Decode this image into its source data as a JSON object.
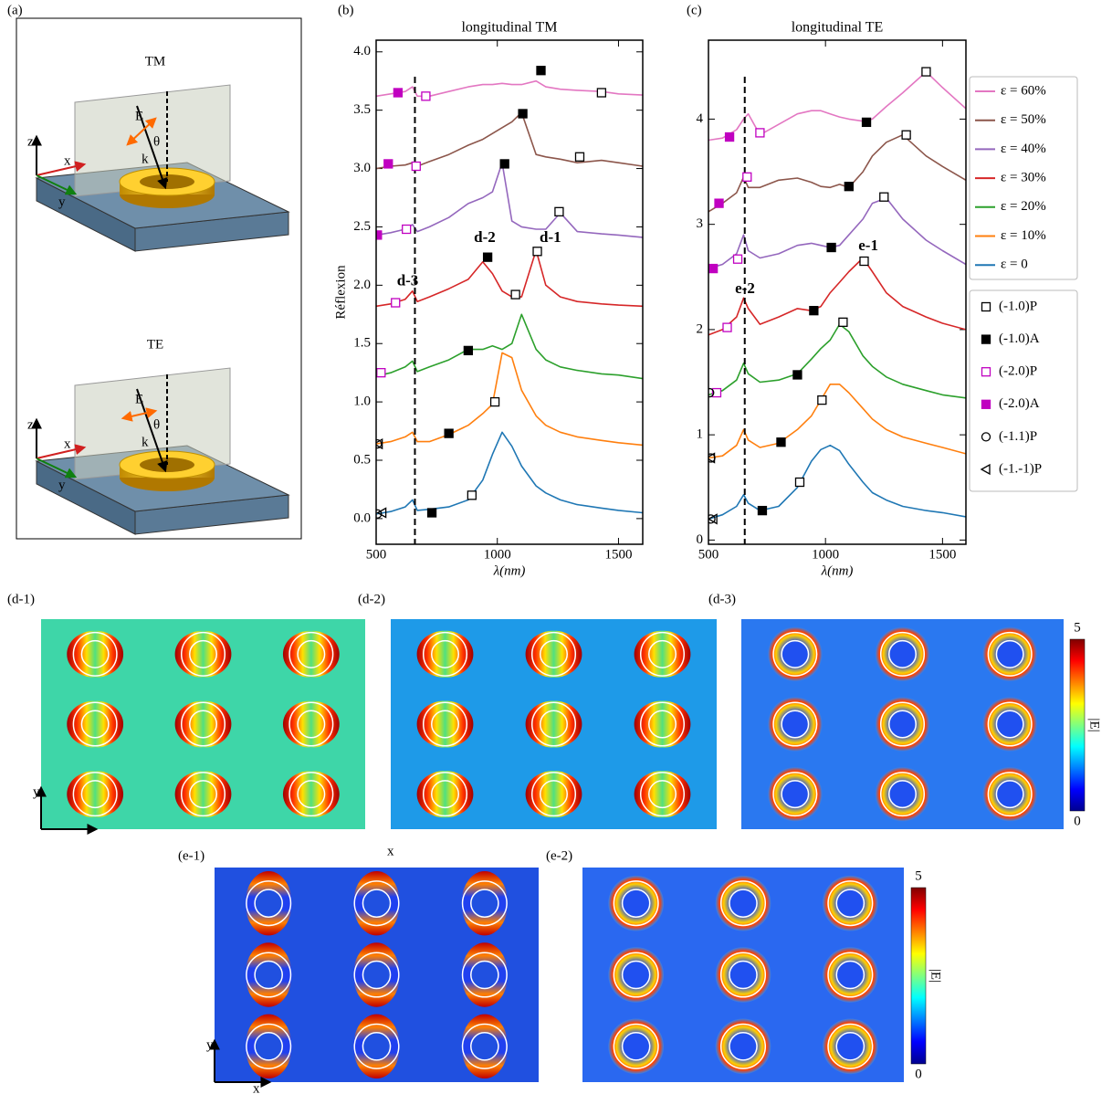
{
  "schematic": {
    "panel_label": "(a)",
    "panels": [
      {
        "title": "TM",
        "z": "z",
        "x": "x",
        "y": "y",
        "E": "E",
        "theta": "θ",
        "k": "k"
      },
      {
        "title": "TE",
        "z": "z",
        "x": "x",
        "y": "y",
        "E": "E",
        "theta": "θ",
        "k": "k"
      }
    ]
  },
  "chart_data": [
    {
      "type": "line",
      "panel_label": "(b)",
      "title": "longitudinal TM",
      "x_label": "λ(nm)",
      "y_label": "Réflexion",
      "xlim": [
        500,
        1600
      ],
      "xticks": [
        500,
        1000,
        1500
      ],
      "ylim": [
        -0.22,
        4.1
      ],
      "yticks": [
        {
          "value": 0,
          "label": "0.0"
        },
        0.5,
        {
          "value": 1,
          "label": "1.0"
        },
        1.5,
        {
          "value": 2,
          "label": "2.0"
        },
        2.5,
        {
          "value": 3,
          "label": "3.0"
        },
        3.5,
        {
          "value": 4,
          "label": "4.0"
        }
      ],
      "vline": {
        "x": 660
      },
      "x": [
        500,
        560,
        620,
        650,
        670,
        720,
        800,
        880,
        940,
        980,
        1020,
        1060,
        1100,
        1160,
        1200,
        1260,
        1330,
        1430,
        1500,
        1600
      ],
      "series": [
        {
          "color": "#1f77b4",
          "values": [
            0.04,
            0.06,
            0.1,
            0.16,
            0.07,
            0.08,
            0.1,
            0.16,
            0.33,
            0.55,
            0.74,
            0.62,
            0.45,
            0.28,
            0.22,
            0.16,
            0.12,
            0.09,
            0.07,
            0.05
          ]
        },
        {
          "color": "#ff7f0e",
          "values": [
            0.64,
            0.66,
            0.7,
            0.74,
            0.66,
            0.66,
            0.72,
            0.8,
            0.9,
            0.98,
            1.42,
            1.38,
            1.1,
            0.88,
            0.8,
            0.74,
            0.7,
            0.67,
            0.65,
            0.63
          ]
        },
        {
          "color": "#2ca02c",
          "values": [
            1.22,
            1.25,
            1.3,
            1.35,
            1.26,
            1.3,
            1.36,
            1.45,
            1.45,
            1.48,
            1.45,
            1.5,
            1.75,
            1.45,
            1.36,
            1.3,
            1.27,
            1.24,
            1.23,
            1.2
          ]
        },
        {
          "color": "#d62728",
          "values": [
            1.82,
            1.84,
            1.88,
            1.95,
            1.86,
            1.9,
            1.97,
            2.05,
            2.2,
            2.1,
            1.95,
            1.9,
            1.9,
            2.3,
            2.0,
            1.9,
            1.86,
            1.84,
            1.83,
            1.82
          ]
        },
        {
          "color": "#9467bd",
          "values": [
            2.43,
            2.45,
            2.48,
            2.52,
            2.46,
            2.5,
            2.58,
            2.7,
            2.75,
            2.8,
            3.05,
            2.55,
            2.5,
            2.48,
            2.48,
            2.62,
            2.46,
            2.44,
            2.43,
            2.41
          ]
        },
        {
          "color": "#8c564b",
          "values": [
            3.0,
            3.02,
            3.03,
            3.05,
            3.02,
            3.06,
            3.12,
            3.2,
            3.25,
            3.3,
            3.35,
            3.4,
            3.48,
            3.12,
            3.1,
            3.08,
            3.05,
            3.07,
            3.05,
            3.02
          ]
        },
        {
          "color": "#e377c2",
          "values": [
            3.62,
            3.64,
            3.66,
            3.7,
            3.62,
            3.62,
            3.66,
            3.7,
            3.72,
            3.72,
            3.73,
            3.72,
            3.72,
            3.75,
            3.7,
            3.68,
            3.67,
            3.66,
            3.64,
            3.63
          ]
        }
      ],
      "markers": [
        {
          "symbol": "square-open",
          "color": "#000000",
          "x": [
            895,
            990,
            1075,
            1165,
            1255,
            1340,
            1430
          ],
          "values": [
            0.2,
            1.0,
            1.92,
            2.29,
            2.63,
            3.1,
            3.65
          ]
        },
        {
          "symbol": "square-filled",
          "color": "#000000",
          "x": [
            730,
            800,
            880,
            960,
            1030,
            1105,
            1180
          ],
          "values": [
            0.05,
            0.73,
            1.44,
            2.24,
            3.04,
            3.47,
            3.84
          ]
        },
        {
          "symbol": "square-open",
          "color": "#c000c0",
          "x": [
            520,
            580,
            625,
            665,
            705
          ],
          "values": [
            1.25,
            1.85,
            2.48,
            3.02,
            3.62
          ]
        },
        {
          "symbol": "square-filled",
          "color": "#c000c0",
          "x": [
            505,
            550,
            590
          ],
          "values": [
            2.43,
            3.04,
            3.65
          ]
        },
        {
          "symbol": "circle-open",
          "color": "#000000",
          "x": [
            505,
            505
          ],
          "values": [
            0.04,
            0.64
          ]
        },
        {
          "symbol": "triangle-open",
          "color": "#000000",
          "x": [
            525,
            510
          ],
          "values": [
            0.05,
            0.64
          ]
        }
      ],
      "annotations": [
        {
          "text": "d-3",
          "x": 630,
          "y": 2.03
        },
        {
          "text": "d-2",
          "x": 948,
          "y": 2.4
        },
        {
          "text": "d-1",
          "x": 1219,
          "y": 2.4
        }
      ]
    },
    {
      "type": "line",
      "panel_label": "(c)",
      "title": "longitudinal TE",
      "x_label": "λ(nm)",
      "xlim": [
        500,
        1600
      ],
      "xticks": [
        500,
        1000,
        1500
      ],
      "ylim": [
        -0.04,
        4.75
      ],
      "yticks": [
        0,
        1,
        2,
        3,
        4
      ],
      "vline": {
        "x": 655
      },
      "legend": "right",
      "x": [
        500,
        560,
        620,
        650,
        670,
        720,
        800,
        880,
        940,
        980,
        1020,
        1060,
        1100,
        1160,
        1200,
        1260,
        1330,
        1430,
        1500,
        1600
      ],
      "series": [
        {
          "name": "ε = 0",
          "color": "#1f77b4",
          "values": [
            0.2,
            0.24,
            0.32,
            0.43,
            0.35,
            0.28,
            0.32,
            0.5,
            0.75,
            0.86,
            0.9,
            0.85,
            0.72,
            0.55,
            0.45,
            0.38,
            0.32,
            0.28,
            0.26,
            0.22
          ]
        },
        {
          "name": "ε = 10%",
          "color": "#ff7f0e",
          "values": [
            0.78,
            0.8,
            0.9,
            1.05,
            0.95,
            0.88,
            0.92,
            1.05,
            1.18,
            1.33,
            1.48,
            1.48,
            1.4,
            1.25,
            1.15,
            1.05,
            0.98,
            0.92,
            0.88,
            0.82
          ]
        },
        {
          "name": "ε = 20%",
          "color": "#2ca02c",
          "values": [
            1.38,
            1.42,
            1.52,
            1.68,
            1.58,
            1.5,
            1.52,
            1.58,
            1.72,
            1.82,
            1.9,
            2.05,
            1.98,
            1.75,
            1.65,
            1.55,
            1.48,
            1.42,
            1.38,
            1.35
          ]
        },
        {
          "name": "ε = 30%",
          "color": "#d62728",
          "values": [
            1.95,
            2.0,
            2.12,
            2.3,
            2.2,
            2.05,
            2.12,
            2.2,
            2.18,
            2.22,
            2.35,
            2.45,
            2.55,
            2.68,
            2.55,
            2.35,
            2.22,
            2.12,
            2.06,
            2.0
          ]
        },
        {
          "name": "ε = 40%",
          "color": "#9467bd",
          "values": [
            2.58,
            2.62,
            2.72,
            2.9,
            2.75,
            2.68,
            2.72,
            2.8,
            2.82,
            2.8,
            2.78,
            2.8,
            2.9,
            3.05,
            3.2,
            3.25,
            3.05,
            2.85,
            2.75,
            2.62
          ]
        },
        {
          "name": "ε = 50%",
          "color": "#8c564b",
          "values": [
            3.12,
            3.2,
            3.3,
            3.45,
            3.35,
            3.35,
            3.42,
            3.44,
            3.4,
            3.36,
            3.35,
            3.38,
            3.35,
            3.5,
            3.65,
            3.78,
            3.85,
            3.65,
            3.55,
            3.42
          ]
        },
        {
          "name": "ε = 60%",
          "color": "#e377c2",
          "values": [
            3.8,
            3.82,
            3.9,
            4.0,
            4.05,
            3.85,
            3.95,
            4.05,
            4.08,
            4.08,
            4.05,
            4.02,
            4.0,
            3.98,
            4.0,
            4.12,
            4.25,
            4.45,
            4.3,
            4.1
          ]
        }
      ],
      "markers": [
        {
          "name": "(-1.0)P",
          "symbol": "square-open",
          "color": "#000000",
          "x": [
            890,
            985,
            1075,
            1165,
            1250,
            1345,
            1430
          ],
          "values": [
            0.55,
            1.33,
            2.07,
            2.65,
            3.26,
            3.85,
            4.45
          ]
        },
        {
          "name": "(-1.0)A",
          "symbol": "square-filled",
          "color": "#000000",
          "x": [
            730,
            810,
            880,
            950,
            1025,
            1100,
            1175
          ],
          "values": [
            0.28,
            0.93,
            1.57,
            2.18,
            2.78,
            3.36,
            3.97
          ]
        },
        {
          "name": "(-2.0)P",
          "symbol": "square-open",
          "color": "#c000c0",
          "x": [
            535,
            580,
            625,
            665,
            720
          ],
          "values": [
            1.4,
            2.02,
            2.67,
            3.45,
            3.87
          ]
        },
        {
          "name": "(-2.0)A",
          "symbol": "square-filled",
          "color": "#c000c0",
          "x": [
            520,
            545,
            590
          ],
          "values": [
            2.58,
            3.2,
            3.83
          ]
        },
        {
          "name": "(-1.1)P",
          "symbol": "circle-open",
          "color": "#000000",
          "x": [
            510,
            510,
            505
          ],
          "values": [
            0.2,
            0.78,
            1.4
          ]
        },
        {
          "name": "(-1.-1)P",
          "symbol": "triangle-open",
          "color": "#000000",
          "x": [
            520,
            510
          ],
          "values": [
            0.2,
            0.78
          ]
        }
      ],
      "annotations": [
        {
          "text": "e-2",
          "x": 656,
          "y": 2.38
        },
        {
          "text": "e-1",
          "x": 1183,
          "y": 2.79
        }
      ]
    }
  ],
  "field_maps": {
    "maps": [
      {
        "label": "(d-1)",
        "axis_labels": {
          "x": "x",
          "y": "y"
        }
      },
      {
        "label": "(d-2)"
      },
      {
        "label": "(d-3)"
      },
      {
        "label": "(e-1)",
        "axis_labels": {
          "x": "x",
          "y": "y"
        }
      },
      {
        "label": "(e-2)"
      }
    ],
    "colorbars": [
      {
        "lim": [
          0,
          5
        ],
        "ticks": [
          0,
          5
        ],
        "label": "|E|"
      },
      {
        "lim": [
          0,
          5
        ],
        "ticks": [
          0,
          5
        ],
        "label": "|E|"
      }
    ]
  }
}
